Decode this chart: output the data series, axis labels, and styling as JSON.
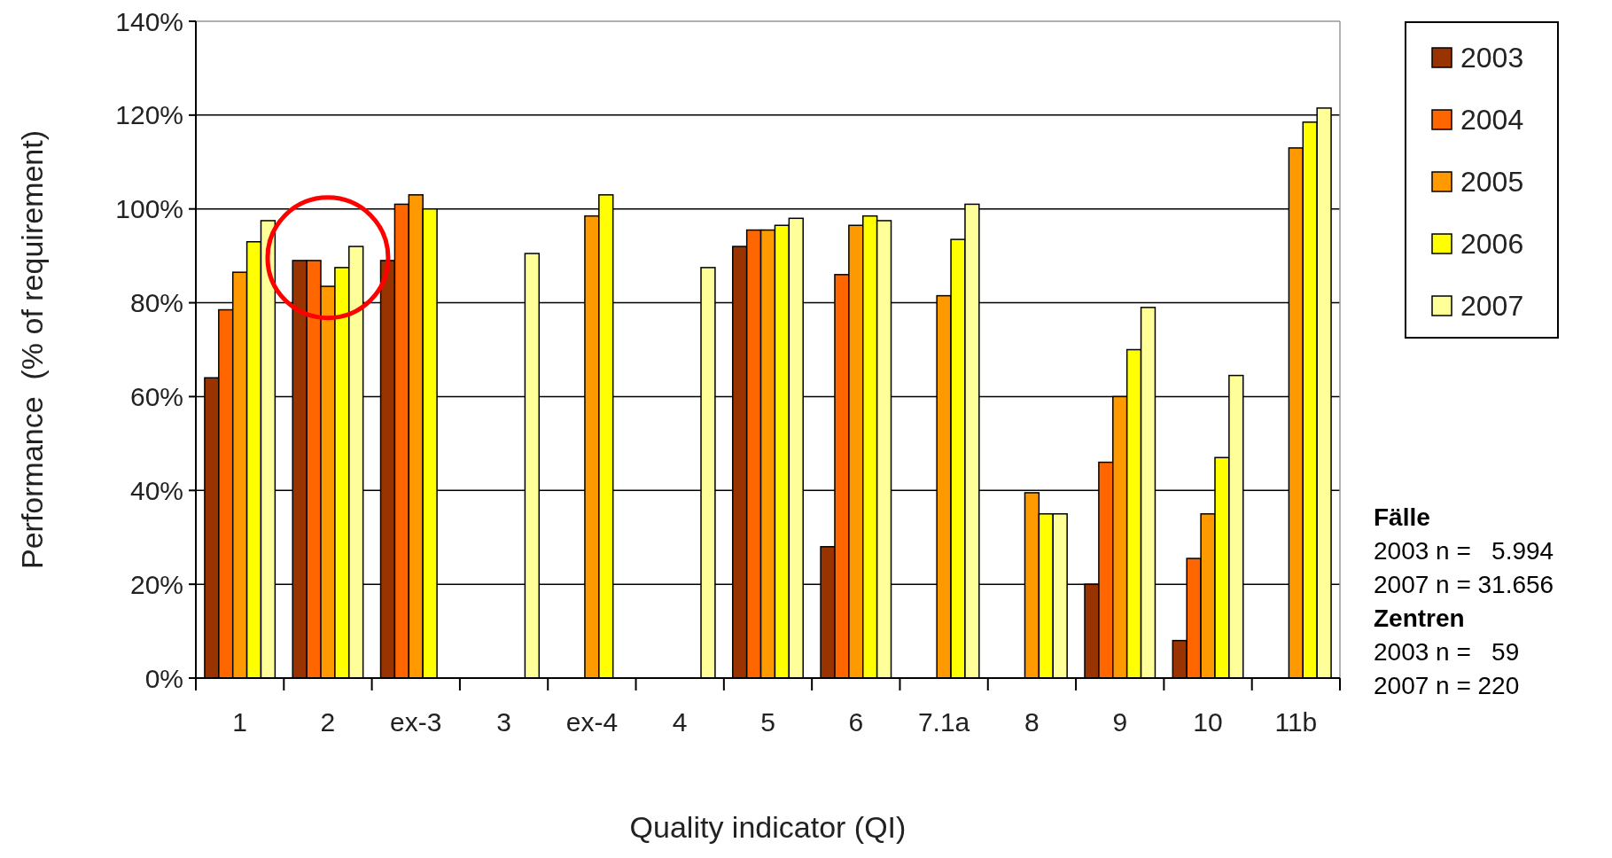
{
  "chart_data": {
    "type": "bar",
    "xlabel": "Quality indicator (QI)",
    "ylabel": "Performance  (% of requirement)",
    "categories": [
      "1",
      "2",
      "ex-3",
      "3",
      "ex-4",
      "4",
      "5",
      "6",
      "7.1a",
      "8",
      "9",
      "10",
      "11b"
    ],
    "series": [
      {
        "name": "2003",
        "color": "#993300",
        "values": [
          64,
          89,
          89,
          null,
          null,
          null,
          92,
          28,
          null,
          null,
          20,
          8,
          null
        ]
      },
      {
        "name": "2004",
        "color": "#ff6600",
        "values": [
          78.5,
          89,
          101,
          null,
          null,
          null,
          95.5,
          86,
          null,
          null,
          46,
          25.5,
          null
        ]
      },
      {
        "name": "2005",
        "color": "#ff9900",
        "values": [
          86.5,
          83.5,
          103,
          null,
          98.5,
          null,
          95.5,
          96.5,
          81.5,
          39.5,
          60,
          35,
          113
        ]
      },
      {
        "name": "2006",
        "color": "#ffff00",
        "values": [
          93,
          87.5,
          100,
          null,
          103,
          null,
          96.5,
          98.5,
          93.5,
          35,
          70,
          47,
          118.5
        ]
      },
      {
        "name": "2007",
        "color": "#ffff99",
        "values": [
          97.5,
          92,
          null,
          90.5,
          null,
          87.5,
          98,
          97.5,
          101,
          35,
          79,
          64.5,
          121.5
        ]
      }
    ],
    "ylim": [
      0,
      140
    ],
    "yticks": [
      {
        "value": 0,
        "label": "0%"
      },
      {
        "value": 20,
        "label": "20%"
      },
      {
        "value": 40,
        "label": "40%"
      },
      {
        "value": 60,
        "label": "60%"
      },
      {
        "value": 80,
        "label": "80%"
      },
      {
        "value": 100,
        "label": "100%"
      },
      {
        "value": 120,
        "label": "120%"
      },
      {
        "value": 140,
        "label": "140%"
      }
    ],
    "grid": "y",
    "legend": "right",
    "annotations": [
      "Fälle",
      "2003 n =   5.994",
      "2007 n = 31.656",
      "Zentren",
      "2003 n =   59",
      "2007 n = 220"
    ]
  }
}
